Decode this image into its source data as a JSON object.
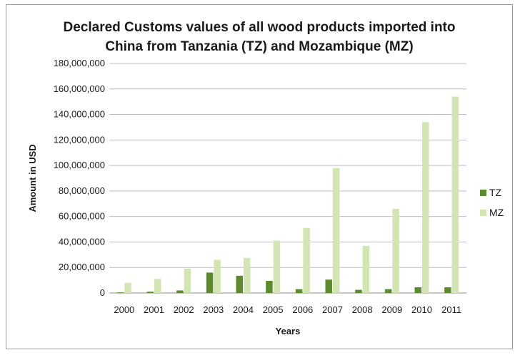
{
  "chart_data": {
    "type": "bar",
    "title_line1": "Declared Customs values of all wood products imported into",
    "title_line2": "China from Tanzania (TZ) and Mozambique (MZ)",
    "xlabel": "Years",
    "ylabel": "Amount in USD",
    "categories": [
      "2000",
      "2001",
      "2002",
      "2003",
      "2004",
      "2005",
      "2006",
      "2007",
      "2008",
      "2009",
      "2010",
      "2011"
    ],
    "series": [
      {
        "name": "TZ",
        "color": "#5e8a2e",
        "values": [
          500000,
          1000000,
          2000000,
          16000000,
          13500000,
          9500000,
          3000000,
          10500000,
          2500000,
          3000000,
          4500000,
          4500000
        ]
      },
      {
        "name": "MZ",
        "color": "#d4e5b4",
        "values": [
          8000000,
          11000000,
          19000000,
          26000000,
          27500000,
          41000000,
          51000000,
          98000000,
          37000000,
          66000000,
          134000000,
          154000000
        ]
      }
    ],
    "ylim": [
      0,
      180000000
    ],
    "yticks": [
      "0",
      "20,000,000",
      "40,000,000",
      "60,000,000",
      "80,000,000",
      "100,000,000",
      "120,000,000",
      "140,000,000",
      "160,000,000",
      "180,000,000"
    ],
    "grid": true,
    "legend": "right"
  }
}
